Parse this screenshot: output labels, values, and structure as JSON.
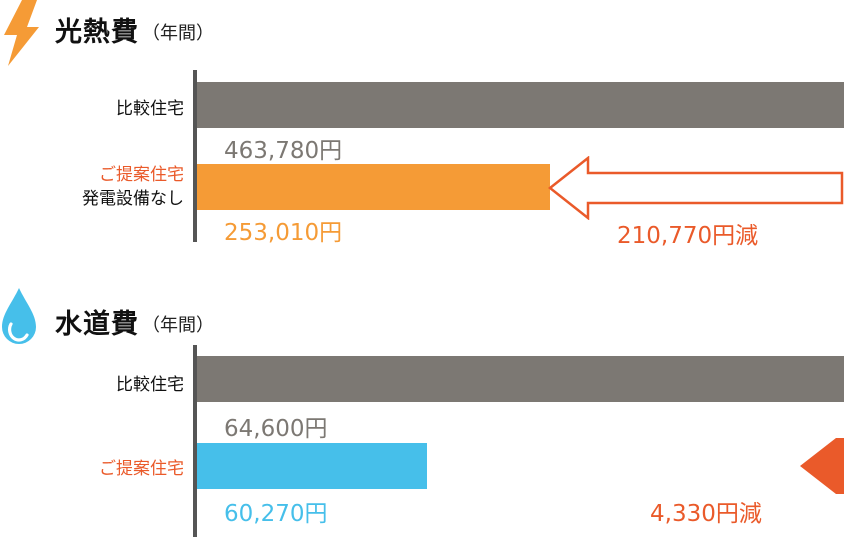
{
  "colors": {
    "compare_bar": "#7c7873",
    "electric_bar": "#f59b36",
    "water_bar": "#46bfea",
    "reduction": "#ea5a2a",
    "axis": "#555555"
  },
  "electricity": {
    "icon": "lightning-icon",
    "title": "光熱費",
    "subtitle": "（年間）",
    "compare_label": "比較住宅",
    "proposal_label": "ご提案住宅",
    "proposal_note": "発電設備なし",
    "compare_value_label": "463,780円",
    "proposal_value_label": "253,010円",
    "reduction_label": "210,770円減"
  },
  "water": {
    "icon": "water-drop-icon",
    "title": "水道費",
    "subtitle": "（年間）",
    "compare_label": "比較住宅",
    "proposal_label": "ご提案住宅",
    "compare_value_label": "64,600円",
    "proposal_value_label": "60,270円",
    "reduction_label": "4,330円減"
  },
  "chart_data": [
    {
      "type": "bar",
      "title": "光熱費（年間）",
      "categories": [
        "比較住宅",
        "ご提案住宅 発電設備なし"
      ],
      "values": [
        463780,
        253010
      ],
      "unit": "円",
      "reduction": 210770
    },
    {
      "type": "bar",
      "title": "水道費（年間）",
      "categories": [
        "比較住宅",
        "ご提案住宅"
      ],
      "values": [
        64600,
        60270
      ],
      "unit": "円",
      "reduction": 4330
    }
  ]
}
